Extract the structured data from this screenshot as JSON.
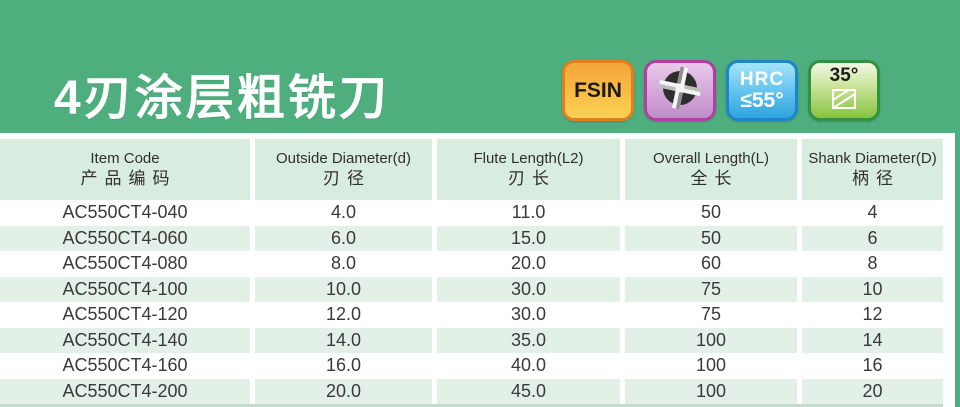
{
  "header": {
    "title": "4刃涂层粗铣刀"
  },
  "badges": {
    "fsin": {
      "label": "FSIN"
    },
    "four_flute": {
      "icon": "four-flute-cross-section"
    },
    "hrc": {
      "line1": "HRC",
      "line2": "≤55°"
    },
    "helix": {
      "label": "35°",
      "icon": "helix-angle"
    }
  },
  "table": {
    "columns": [
      {
        "en": "Item Code",
        "zh": "产品编码"
      },
      {
        "en": "Outside Diameter(d)",
        "zh": "刃径"
      },
      {
        "en": "Flute Length(L2)",
        "zh": "刃长"
      },
      {
        "en": "Overall Length(L)",
        "zh": "全长"
      },
      {
        "en": "Shank Diameter(D)",
        "zh": "柄径"
      }
    ],
    "rows": [
      {
        "item_code": "AC550CT4-040",
        "outside_diameter": "4.0",
        "flute_length": "11.0",
        "overall_length": "50",
        "shank_diameter": "4"
      },
      {
        "item_code": "AC550CT4-060",
        "outside_diameter": "6.0",
        "flute_length": "15.0",
        "overall_length": "50",
        "shank_diameter": "6"
      },
      {
        "item_code": "AC550CT4-080",
        "outside_diameter": "8.0",
        "flute_length": "20.0",
        "overall_length": "60",
        "shank_diameter": "8"
      },
      {
        "item_code": "AC550CT4-100",
        "outside_diameter": "10.0",
        "flute_length": "30.0",
        "overall_length": "75",
        "shank_diameter": "10"
      },
      {
        "item_code": "AC550CT4-120",
        "outside_diameter": "12.0",
        "flute_length": "30.0",
        "overall_length": "75",
        "shank_diameter": "12"
      },
      {
        "item_code": "AC550CT4-140",
        "outside_diameter": "14.0",
        "flute_length": "35.0",
        "overall_length": "100",
        "shank_diameter": "14"
      },
      {
        "item_code": "AC550CT4-160",
        "outside_diameter": "16.0",
        "flute_length": "40.0",
        "overall_length": "100",
        "shank_diameter": "16"
      },
      {
        "item_code": "AC550CT4-200",
        "outside_diameter": "20.0",
        "flute_length": "45.0",
        "overall_length": "100",
        "shank_diameter": "20"
      }
    ]
  },
  "colors": {
    "page_green": "#4fae7e",
    "header_cell": "#d9ece0",
    "row_stripe": "#e2f0e8",
    "text_dark": "#333333",
    "badge_fsin_border": "#e07f1f",
    "badge_four_flute_border": "#b13fa1",
    "badge_hrc_border": "#1d86c8",
    "badge_helix_border": "#2f9340"
  }
}
